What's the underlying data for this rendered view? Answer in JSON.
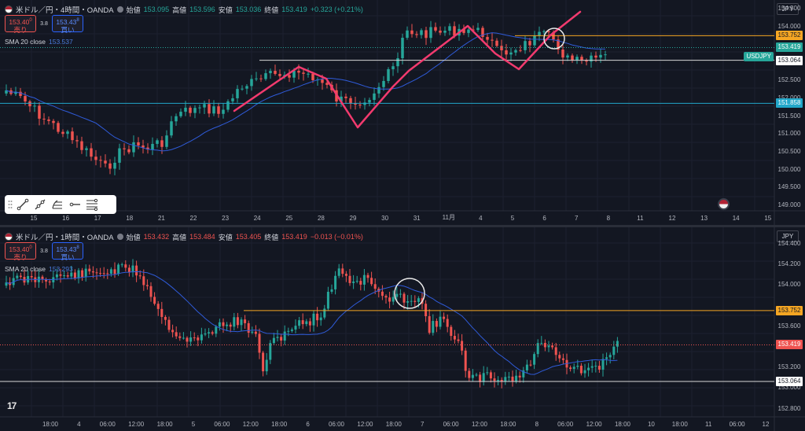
{
  "colors": {
    "up": "#26a69a",
    "down": "#ef5350",
    "sma": "#2f5bd9",
    "annot": "#f23a6e",
    "orange": "#f5a623",
    "cyan": "#22a7c9",
    "white": "#d8d8d8",
    "grid": "#1d2130",
    "bg": "#131722"
  },
  "top": {
    "symbol": "米ドル／円・4時間・OANDA",
    "ohlc": [
      {
        "label": "始値",
        "value": "153.095"
      },
      {
        "label": "高値",
        "value": "153.596"
      },
      {
        "label": "安値",
        "value": "153.036"
      },
      {
        "label": "終値",
        "value": "153.419"
      }
    ],
    "change": "+0.323 (+0.21%)",
    "sell": {
      "price": "153.40",
      "sup": "0",
      "label": "売り"
    },
    "spread": "3.8",
    "buy": {
      "price": "153.43",
      "sup": "8",
      "label": "買い"
    },
    "sma_label": "SMA 20 close",
    "sma_value": "153.537",
    "currency": "JPY",
    "symbol_tag": "USDJPY",
    "yaxis": {
      "min": 148.85,
      "max": 154.75,
      "ticks": [
        "154.500",
        "154.000",
        "152.500",
        "152.000",
        "151.500",
        "151.000",
        "150.500",
        "150.000",
        "149.500",
        "149.000"
      ]
    },
    "price_tags": [
      {
        "value": "153.752",
        "type": "orange"
      },
      {
        "value": "153.419",
        "type": "up"
      },
      {
        "value": "153.064",
        "type": "white"
      },
      {
        "value": "151.858",
        "type": "cyan"
      }
    ],
    "xaxis": [
      "15",
      "16",
      "17",
      "18",
      "21",
      "22",
      "23",
      "24",
      "25",
      "28",
      "29",
      "30",
      "31",
      "11月",
      "4",
      "5",
      "6",
      "7",
      "8",
      "11",
      "12",
      "13",
      "14",
      "15"
    ]
  },
  "bottom": {
    "symbol": "米ドル／円・1時間・OANDA",
    "ohlc": [
      {
        "label": "始値",
        "value": "153.432"
      },
      {
        "label": "高値",
        "value": "153.484"
      },
      {
        "label": "安値",
        "value": "153.405"
      },
      {
        "label": "終値",
        "value": "153.419"
      }
    ],
    "change": "−0.013 (−0.01%)",
    "sell": {
      "price": "153.40",
      "sup": "0",
      "label": "売り"
    },
    "spread": "3.8",
    "buy": {
      "price": "153.43",
      "sup": "8",
      "label": "買い"
    },
    "sma_label": "SMA 20 close",
    "sma_value": "153.293",
    "currency": "JPY",
    "yaxis": {
      "min": 152.72,
      "max": 154.56,
      "ticks": [
        "154.400",
        "154.200",
        "154.000",
        "153.600",
        "153.200",
        "153.000",
        "152.800"
      ]
    },
    "price_tags": [
      {
        "value": "153.752",
        "type": "orange"
      },
      {
        "value": "153.419",
        "type": "down"
      },
      {
        "value": "153.064",
        "type": "white"
      }
    ],
    "xaxis": [
      "18:00",
      "4",
      "06:00",
      "12:00",
      "18:00",
      "5",
      "06:00",
      "12:00",
      "18:00",
      "6",
      "06:00",
      "12:00",
      "18:00",
      "7",
      "06:00",
      "12:00",
      "18:00",
      "8",
      "06:00",
      "12:00",
      "18:00",
      "10",
      "18:00",
      "11",
      "06:00",
      "12"
    ]
  },
  "logo": "17"
}
